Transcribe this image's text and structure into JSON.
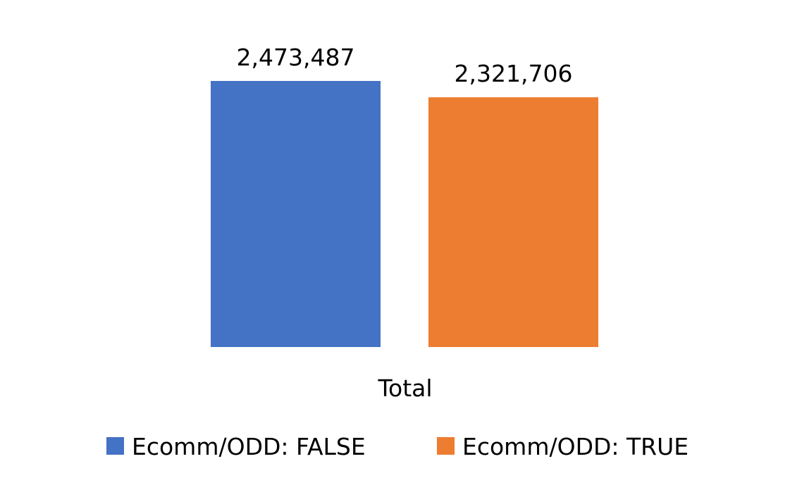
{
  "chart_data": {
    "type": "bar",
    "categories": [
      "Total"
    ],
    "series": [
      {
        "name": "Ecomm/ODD: FALSE",
        "values": [
          2473487
        ],
        "label": "2,473,487",
        "color": "#4472C4"
      },
      {
        "name": "Ecomm/ODD: TRUE",
        "values": [
          2321706
        ],
        "label": "2,321,706",
        "color": "#ED7D31"
      }
    ],
    "ylim": [
      0,
      2700000
    ],
    "grid": false,
    "legend_position": "bottom"
  }
}
